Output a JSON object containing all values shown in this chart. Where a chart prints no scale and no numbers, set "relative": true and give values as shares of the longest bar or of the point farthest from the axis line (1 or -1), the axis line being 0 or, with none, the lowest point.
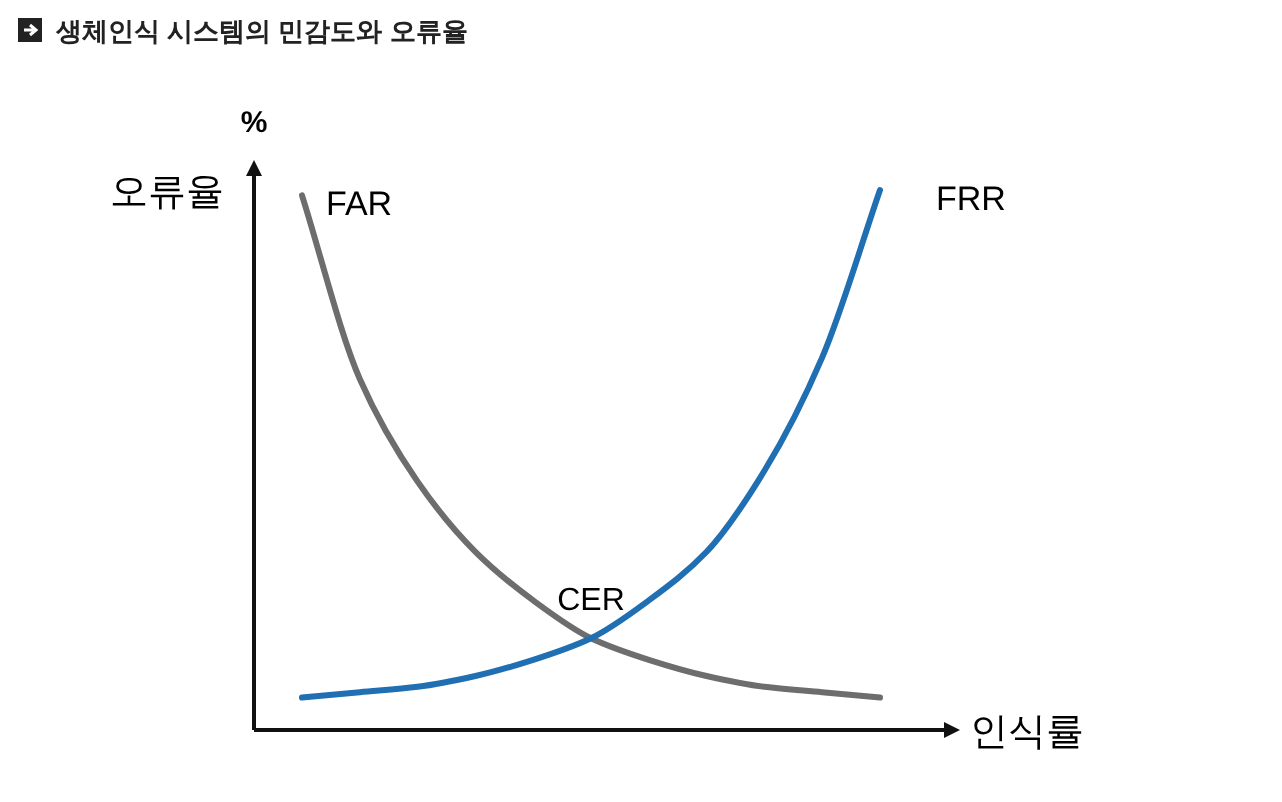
{
  "chart_data": {
    "type": "line",
    "title": "생체인식 시스템의 민감도와 오류율",
    "xlabel": "인식률",
    "ylabel": "오류율",
    "relative": true,
    "annotations": [
      "%",
      "CER"
    ],
    "categories": [
      null,
      null,
      null,
      null,
      null,
      null,
      null,
      null,
      null,
      null,
      null
    ],
    "series": [
      {
        "name": "FAR",
        "color": "#6d6d6d",
        "values": [
          0.99,
          0.65,
          0.46,
          0.33,
          0.24,
          0.17,
          0.13,
          0.1,
          0.08,
          0.07,
          0.06
        ]
      },
      {
        "name": "FRR",
        "color": "#1f6fb2",
        "values": [
          0.06,
          0.07,
          0.08,
          0.1,
          0.13,
          0.17,
          0.24,
          0.33,
          0.48,
          0.69,
          1.0
        ]
      }
    ]
  }
}
